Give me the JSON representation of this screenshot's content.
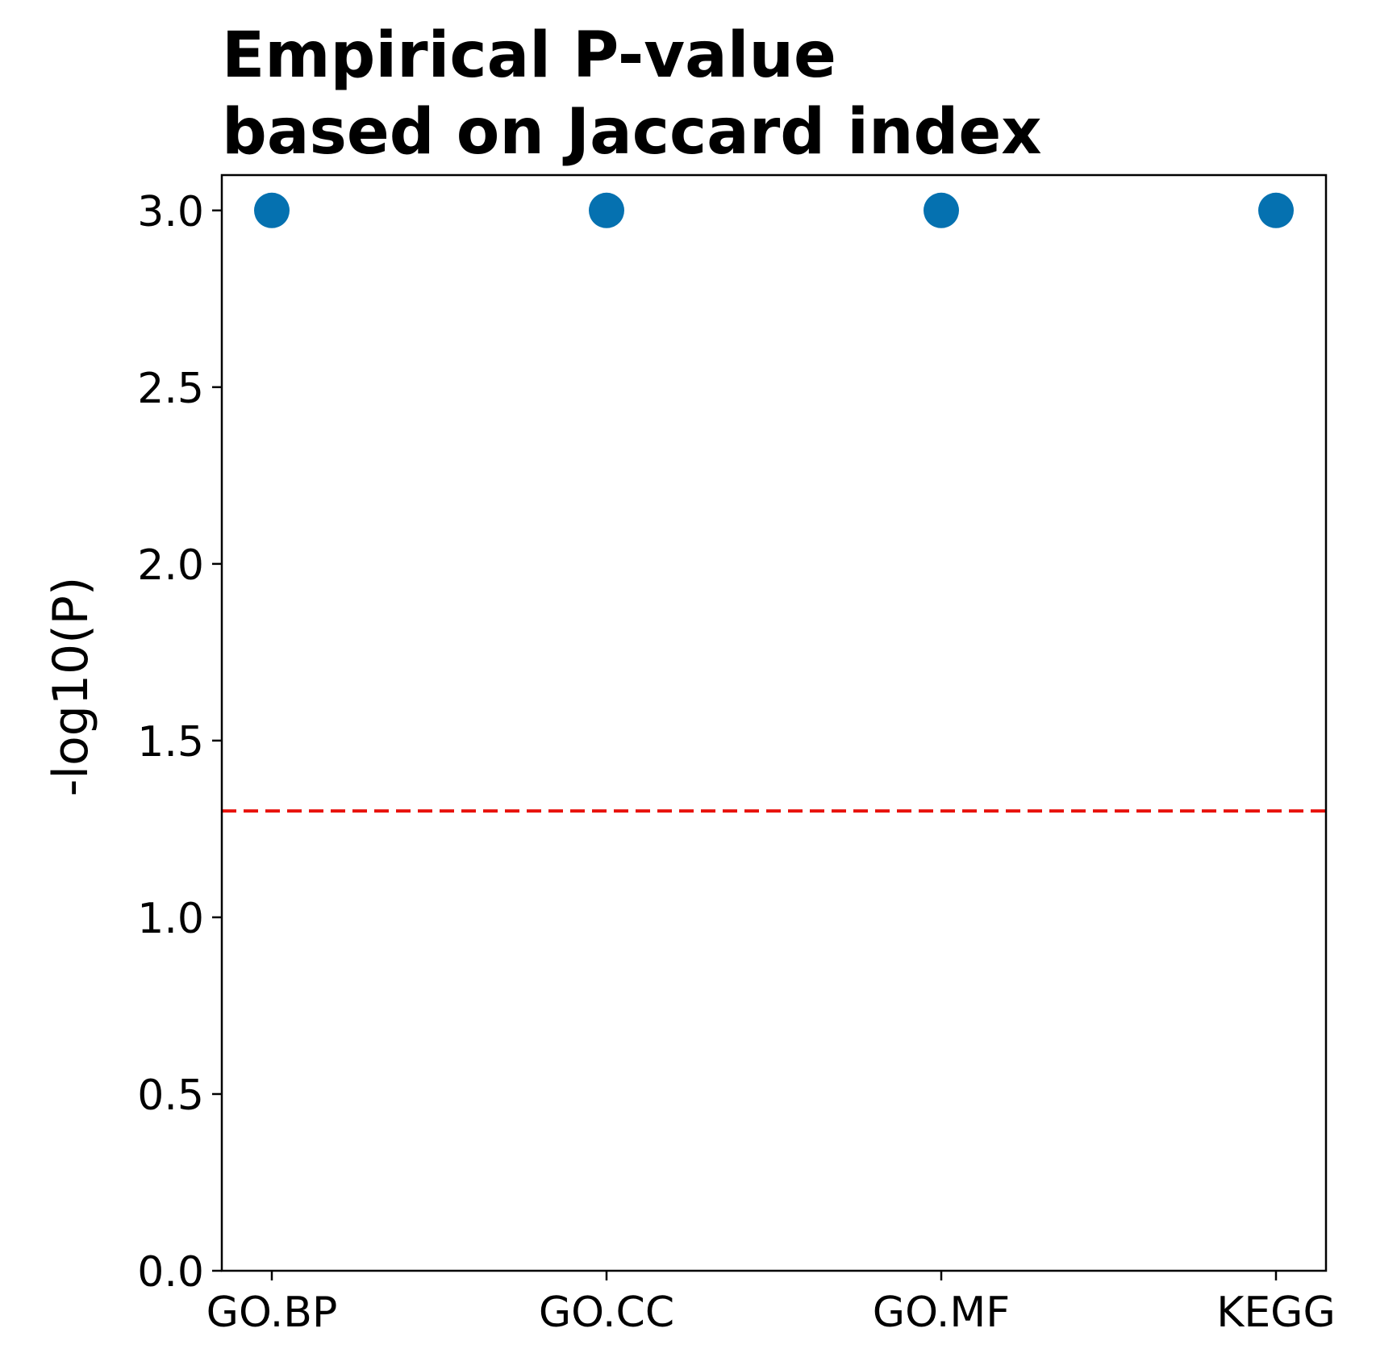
{
  "chart_data": {
    "type": "scatter",
    "title_lines": [
      "Empirical P-value",
      "based on Jaccard index"
    ],
    "xlabel": "",
    "ylabel": "-log10(P)",
    "categories": [
      "GO.BP",
      "GO.CC",
      "GO.MF",
      "KEGG"
    ],
    "values": [
      3.0,
      3.0,
      3.0,
      3.0
    ],
    "ylim": [
      0,
      3.1
    ],
    "yticks": [
      0.0,
      0.5,
      1.0,
      1.5,
      2.0,
      2.5,
      3.0
    ],
    "ytick_labels": [
      "0.0",
      "0.5",
      "1.0",
      "1.5",
      "2.0",
      "2.5",
      "3.0"
    ],
    "threshold": {
      "value": 1.30103,
      "style": "dashed",
      "color": "#e8120c"
    },
    "point_color": "#0571b0",
    "grid": false
  }
}
